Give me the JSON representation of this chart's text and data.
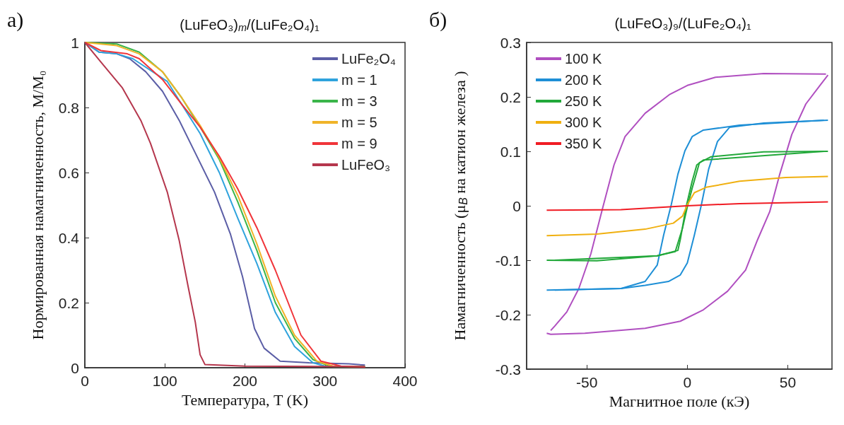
{
  "chart_data": [
    {
      "type": "line",
      "title": "(LuFeO₃)$_{m}$/(LuFe₂O₄)₁",
      "xlabel": "Температура, T (K)",
      "ylabel": "Нормированная намагниченность, M/M₀",
      "annotations": [
        "a)"
      ],
      "xlim": [
        0,
        400
      ],
      "xticks": [
        0,
        100,
        200,
        300,
        400
      ],
      "ylim": [
        0,
        1
      ],
      "yticks": [
        0,
        0.2,
        0.4,
        0.6,
        0.8,
        1
      ],
      "grid": false,
      "legend": "top right",
      "series": [
        {
          "name": "LuFe₂O₄",
          "color": "#5b5ea6",
          "x": [
            0,
            18,
            40,
            56,
            76,
            97,
            118,
            138,
            162,
            182,
            197,
            212,
            224,
            244,
            280,
            330,
            350
          ],
          "values": [
            1,
            0.97,
            0.965,
            0.95,
            0.91,
            0.85,
            0.76,
            0.66,
            0.54,
            0.41,
            0.28,
            0.12,
            0.06,
            0.02,
            0.015,
            0.012,
            0.008
          ]
        },
        {
          "name": "m = 1",
          "color": "#2fa3dd",
          "x": [
            0,
            18,
            40,
            60,
            103,
            121,
            144,
            168,
            191,
            215,
            238,
            262,
            285,
            300,
            350
          ],
          "values": [
            1,
            0.97,
            0.965,
            0.95,
            0.88,
            0.81,
            0.72,
            0.6,
            0.46,
            0.32,
            0.17,
            0.065,
            0.015,
            0.005,
            0.004
          ]
        },
        {
          "name": "m = 3",
          "color": "#3bb54a",
          "x": [
            0,
            40,
            68,
            97,
            121,
            144,
            168,
            191,
            215,
            238,
            262,
            285,
            300,
            310,
            350
          ],
          "values": [
            1,
            0.995,
            0.97,
            0.91,
            0.83,
            0.74,
            0.64,
            0.51,
            0.36,
            0.2,
            0.09,
            0.025,
            0.01,
            0.004,
            0.003
          ]
        },
        {
          "name": "m = 5",
          "color": "#f0b429",
          "x": [
            0,
            40,
            68,
            97,
            121,
            144,
            168,
            191,
            215,
            238,
            262,
            290,
            310,
            350
          ],
          "values": [
            1,
            0.99,
            0.965,
            0.91,
            0.83,
            0.745,
            0.645,
            0.53,
            0.38,
            0.22,
            0.1,
            0.02,
            0.005,
            0.003
          ]
        },
        {
          "name": "m = 9",
          "color": "#f0353a",
          "x": [
            0,
            20,
            53,
            68,
            97,
            121,
            144,
            168,
            191,
            215,
            238,
            262,
            270,
            295,
            320,
            350
          ],
          "values": [
            1,
            0.975,
            0.965,
            0.95,
            0.886,
            0.81,
            0.74,
            0.65,
            0.55,
            0.43,
            0.3,
            0.15,
            0.1,
            0.02,
            0.005,
            0.002
          ]
        },
        {
          "name": "LuFeO₃",
          "color": "#b5374d",
          "x": [
            0,
            20,
            47,
            70,
            82,
            103,
            118,
            129,
            138,
            144,
            150,
            200,
            350
          ],
          "values": [
            1,
            0.94,
            0.86,
            0.76,
            0.69,
            0.54,
            0.39,
            0.25,
            0.14,
            0.04,
            0.01,
            0.005,
            0.003
          ]
        }
      ]
    },
    {
      "type": "line",
      "title": "(LuFeO₃)₉/(LuFe₂O₄)₁",
      "xlabel": "Магнитное поле (кЭ)",
      "ylabel": "Намагниченность (μ$_{B}$ на катион железа )",
      "annotations": [
        "б)"
      ],
      "xlim": [
        -80,
        72
      ],
      "xticks": [
        -50,
        0,
        50
      ],
      "ylim": [
        -0.3,
        0.3
      ],
      "yticks": [
        -0.3,
        -0.2,
        -0.1,
        0,
        0.1,
        0.2,
        0.3
      ],
      "grid": false,
      "legend": "top left",
      "series": [
        {
          "name": "100 K",
          "color": "#b04fc0",
          "x": [
            -70,
            -68,
            -51,
            -21,
            -3.5,
            8,
            20,
            29,
            35,
            41,
            46,
            52,
            59,
            66,
            70
          ],
          "values": [
            -0.234,
            -0.236,
            -0.234,
            -0.225,
            -0.212,
            -0.191,
            -0.157,
            -0.118,
            -0.062,
            -0.011,
            0.058,
            0.131,
            0.187,
            0.221,
            0.24
          ]
        },
        {
          "color": "#b04fc0",
          "x": [
            -68,
            -66,
            -60,
            -54,
            -48,
            -42,
            -36.5,
            -31,
            -21,
            -9,
            0,
            14,
            38,
            69
          ],
          "values": [
            -0.229,
            -0.221,
            -0.195,
            -0.152,
            -0.088,
            -0.002,
            0.075,
            0.127,
            0.17,
            0.204,
            0.221,
            0.236,
            0.243,
            0.242
          ]
        },
        {
          "name": "200 K",
          "color": "#1e8fd6",
          "x": [
            -70,
            -33,
            -21,
            -9.4,
            -3.5,
            0,
            3.5,
            7,
            10.6,
            15,
            21,
            38,
            70
          ],
          "values": [
            -0.155,
            -0.152,
            -0.146,
            -0.139,
            -0.127,
            -0.105,
            -0.054,
            0.002,
            0.067,
            0.118,
            0.144,
            0.152,
            0.157
          ]
        },
        {
          "color": "#1e8fd6",
          "x": [
            -66,
            -33,
            -21,
            -15,
            -11.8,
            -8,
            -4.7,
            -1.2,
            2.4,
            8,
            26,
            68
          ],
          "values": [
            -0.155,
            -0.152,
            -0.139,
            -0.109,
            -0.054,
            0.002,
            0.058,
            0.101,
            0.127,
            0.139,
            0.148,
            0.157
          ]
        },
        {
          "name": "250 K",
          "color": "#22a83a",
          "x": [
            -70,
            -45,
            -15,
            -6,
            -2.4,
            0,
            2.4,
            6,
            11.8,
            38,
            70
          ],
          "values": [
            -0.1,
            -0.101,
            -0.092,
            -0.084,
            -0.041,
            -0.002,
            0.032,
            0.079,
            0.09,
            0.099,
            0.1
          ]
        },
        {
          "color": "#22a83a",
          "x": [
            -66,
            -15,
            -4.7,
            -3.5,
            -0.6,
            2.4,
            4.7,
            8,
            68
          ],
          "values": [
            -0.1,
            -0.092,
            -0.082,
            -0.062,
            -0.002,
            0.045,
            0.075,
            0.084,
            0.1
          ]
        },
        {
          "name": "300 K",
          "color": "#f0b010",
          "x": [
            -70,
            -45,
            -21,
            -7,
            -2.4,
            0,
            3.5,
            9.4,
            26,
            49,
            70
          ],
          "values": [
            -0.055,
            -0.052,
            -0.043,
            -0.032,
            -0.019,
            0.002,
            0.024,
            0.034,
            0.045,
            0.052,
            0.054
          ]
        },
        {
          "name": "350 K",
          "color": "#f01c24",
          "x": [
            -70,
            -33,
            0,
            26,
            70
          ],
          "values": [
            -0.008,
            -0.007,
            0,
            0.004,
            0.007
          ]
        }
      ]
    }
  ]
}
